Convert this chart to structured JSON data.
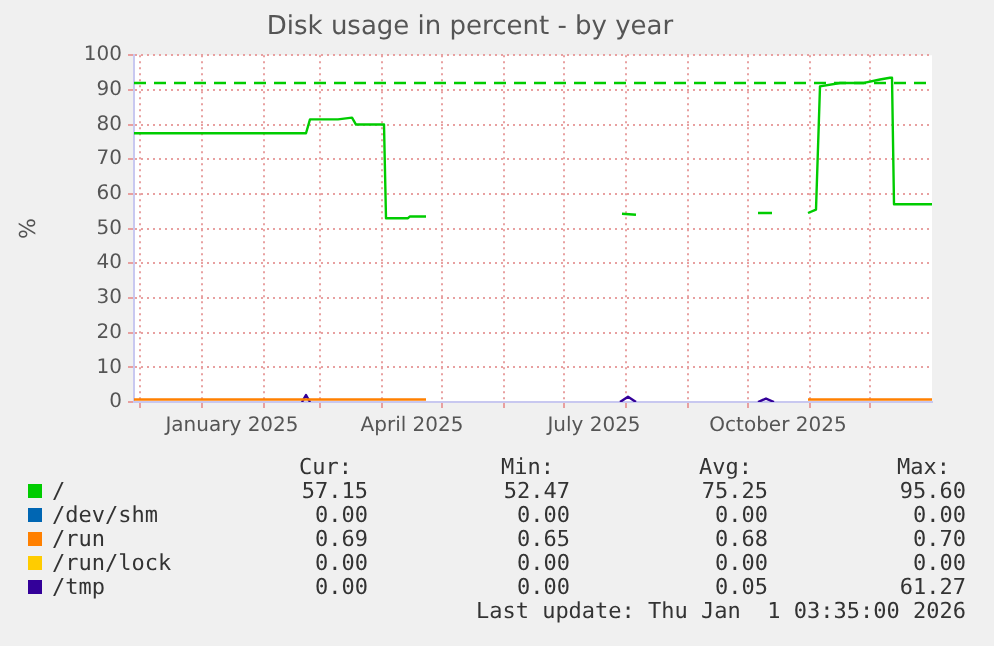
{
  "chart_data": {
    "type": "line",
    "title": "Disk usage in percent - by year",
    "ylabel": "%",
    "xlim": [
      "2024-11-28",
      "2026-01-01"
    ],
    "xticks": [
      {
        "value": "2024-12-01",
        "label": null
      },
      {
        "value": "2025-01-01",
        "label": null
      },
      {
        "value": "2025-01-16",
        "label": "January 2025"
      },
      {
        "value": "2025-02-01",
        "label": null
      },
      {
        "value": "2025-03-01",
        "label": null
      },
      {
        "value": "2025-04-01",
        "label": null
      },
      {
        "value": "2025-04-16",
        "label": "April 2025"
      },
      {
        "value": "2025-05-01",
        "label": null
      },
      {
        "value": "2025-06-01",
        "label": null
      },
      {
        "value": "2025-07-01",
        "label": null
      },
      {
        "value": "2025-07-16",
        "label": "July 2025"
      },
      {
        "value": "2025-08-01",
        "label": null
      },
      {
        "value": "2025-09-01",
        "label": null
      },
      {
        "value": "2025-10-01",
        "label": null
      },
      {
        "value": "2025-10-16",
        "label": "October 2025"
      },
      {
        "value": "2025-11-01",
        "label": null
      },
      {
        "value": "2025-12-01",
        "label": null
      }
    ],
    "ylim": [
      0,
      100
    ],
    "yticks": [
      0,
      10,
      20,
      30,
      40,
      50,
      60,
      70,
      80,
      90,
      100
    ],
    "grid": true,
    "legend": "bottom",
    "marker": "none",
    "ref_lines": [
      {
        "axis": "y",
        "value": 92,
        "color": "#00cc00",
        "line_style": "dashed"
      }
    ],
    "series": [
      {
        "name": "/",
        "color": "#00cc00",
        "x": [
          "2024-11-28",
          "2024-12-10",
          "2024-12-25",
          "2025-01-10",
          "2025-02-05",
          "2025-02-22",
          "2025-02-24",
          "2025-03-10",
          "2025-03-17",
          "2025-03-19",
          "2025-04-01",
          "2025-04-02",
          "2025-04-03",
          "2025-04-14",
          "2025-04-15",
          "2025-04-23",
          "2025-04-24",
          "2025-07-30",
          "2025-08-06",
          "2025-08-07",
          "2025-10-06",
          "2025-10-13",
          "2025-10-14",
          "2025-10-31",
          "2025-11-04",
          "2025-11-06",
          "2025-11-16",
          "2025-11-28",
          "2025-12-06",
          "2025-12-11",
          "2025-12-12",
          "2025-12-13",
          "2026-01-01"
        ],
        "values": [
          77.5,
          77.5,
          77.5,
          77.5,
          77.5,
          77.5,
          81.5,
          81.5,
          82,
          80,
          80,
          80,
          53,
          53,
          53.5,
          53.5,
          null,
          54.3,
          54,
          null,
          54.5,
          54.5,
          null,
          54.5,
          55.5,
          91,
          92,
          92,
          93,
          93.5,
          93.5,
          57,
          57
        ]
      },
      {
        "name": "/dev/shm",
        "color": "#0066b3"
      },
      {
        "name": "/run",
        "color": "#ff8000",
        "x": [
          "2024-11-28",
          "2025-04-23",
          "2025-04-24",
          "2025-10-30",
          "2025-10-31",
          "2026-01-01"
        ],
        "values": [
          0.7,
          0.7,
          null,
          null,
          0.7,
          0.7
        ]
      },
      {
        "name": "/run/lock",
        "color": "#ffcc00"
      },
      {
        "name": "/tmp",
        "color": "#330099",
        "x": [
          "2025-02-20",
          "2025-02-22",
          "2025-02-24",
          "2025-02-25",
          "2025-07-29",
          "2025-08-02",
          "2025-08-06",
          "2025-08-07",
          "2025-10-06",
          "2025-10-10",
          "2025-10-14"
        ],
        "values": [
          0,
          2,
          0,
          null,
          0,
          1.5,
          0,
          null,
          0,
          1,
          0
        ]
      }
    ],
    "annotations": [
      "Cur:",
      "Min:",
      "Avg:",
      "Max:",
      "57.15",
      "52.47",
      "75.25",
      "95.60",
      "0.00",
      "0.00",
      "0.00",
      "0.00",
      "0.69",
      "0.65",
      "0.68",
      "0.70",
      "0.00",
      "0.00",
      "0.00",
      "0.00",
      "0.00",
      "0.00",
      "0.05",
      "61.27",
      "Last update: Thu Jan  1 03:35:00 2026"
    ]
  }
}
